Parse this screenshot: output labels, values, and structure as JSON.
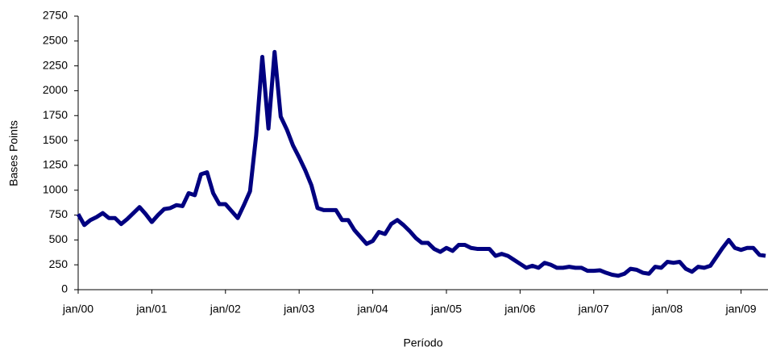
{
  "chart_data": {
    "type": "line",
    "y_label": "Bases Points",
    "x_label": "Período",
    "categories": [
      "jan/00",
      null,
      null,
      null,
      null,
      null,
      null,
      null,
      null,
      null,
      null,
      null,
      "jan/01",
      null,
      null,
      null,
      null,
      null,
      null,
      null,
      null,
      null,
      null,
      null,
      "jan/02",
      null,
      null,
      null,
      null,
      null,
      null,
      null,
      null,
      null,
      null,
      null,
      "jan/03",
      null,
      null,
      null,
      null,
      null,
      null,
      null,
      null,
      null,
      null,
      null,
      "jan/04",
      null,
      null,
      null,
      null,
      null,
      null,
      null,
      null,
      null,
      null,
      null,
      "jan/05",
      null,
      null,
      null,
      null,
      null,
      null,
      null,
      null,
      null,
      null,
      null,
      "jan/06",
      null,
      null,
      null,
      null,
      null,
      null,
      null,
      null,
      null,
      null,
      null,
      "jan/07",
      null,
      null,
      null,
      null,
      null,
      null,
      null,
      null,
      null,
      null,
      null,
      "jan/08",
      null,
      null,
      null,
      null,
      null,
      null,
      null,
      null,
      null,
      null,
      null,
      "jan/09",
      null,
      null,
      null,
      null
    ],
    "series": [
      {
        "name": "Bases Points",
        "color": "#000080",
        "values": [
          760,
          650,
          700,
          730,
          770,
          720,
          720,
          660,
          710,
          770,
          830,
          760,
          680,
          750,
          810,
          820,
          850,
          840,
          970,
          950,
          1160,
          1180,
          970,
          860,
          860,
          790,
          720,
          850,
          990,
          1550,
          2340,
          1620,
          2390,
          1740,
          1610,
          1450,
          1330,
          1200,
          1050,
          820,
          800,
          800,
          800,
          700,
          700,
          600,
          530,
          460,
          490,
          580,
          560,
          660,
          700,
          650,
          590,
          520,
          470,
          470,
          410,
          380,
          420,
          390,
          450,
          450,
          420,
          410,
          410,
          410,
          340,
          360,
          340,
          300,
          260,
          220,
          240,
          220,
          270,
          250,
          220,
          220,
          230,
          220,
          220,
          190,
          190,
          195,
          170,
          150,
          140,
          160,
          210,
          200,
          170,
          160,
          230,
          220,
          280,
          270,
          280,
          210,
          180,
          230,
          220,
          240,
          330,
          420,
          500,
          420,
          400,
          420,
          420,
          350,
          340
        ]
      }
    ],
    "ylim": [
      0,
      2750
    ],
    "yticks": [
      0,
      250,
      500,
      750,
      1000,
      1250,
      1500,
      1750,
      2000,
      2250,
      2500,
      2750
    ],
    "grid": false
  }
}
